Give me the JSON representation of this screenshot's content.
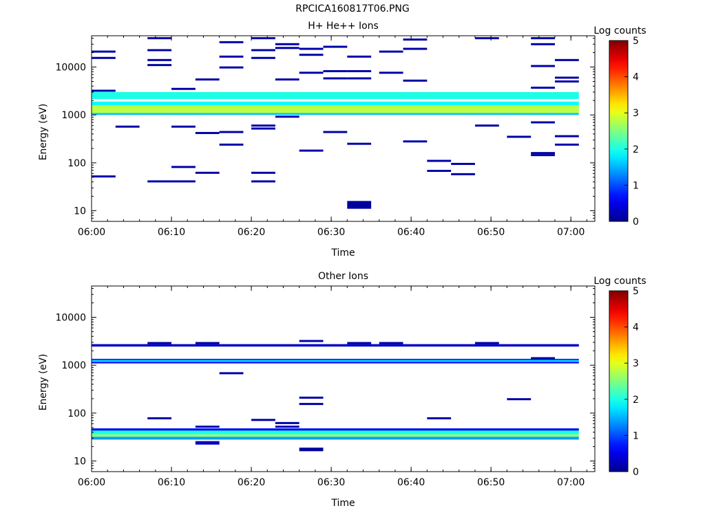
{
  "title": "RPCICA160817T06.PNG",
  "chart_data": [
    {
      "type": "heatmap",
      "title": "H+ He++ Ions",
      "xlabel": "Time",
      "ylabel": "Energy (eV)",
      "y_scale": "log",
      "xlim": [
        "06:00",
        "07:03"
      ],
      "ylim": [
        6,
        45000
      ],
      "x_ticks": [
        "06:00",
        "06:10",
        "06:20",
        "06:30",
        "06:40",
        "06:50",
        "07:00"
      ],
      "y_ticks": [
        "10",
        "100",
        "1000",
        "10000"
      ],
      "colorbar": {
        "label": "Log counts",
        "min": 0,
        "max": 5,
        "ticks": [
          "0",
          "1",
          "2",
          "3",
          "4",
          "5"
        ]
      },
      "bands": [
        {
          "t0": "06:00",
          "t1": "07:01",
          "e_lo": 2150,
          "e_hi": 3000,
          "v": 2.0
        },
        {
          "t0": "06:00",
          "t1": "07:01",
          "e_lo": 1600,
          "e_hi": 1900,
          "v": 1.9
        },
        {
          "t0": "06:00",
          "t1": "07:01",
          "e_lo": 1100,
          "e_hi": 1600,
          "v": 2.8
        },
        {
          "t0": "06:00",
          "t1": "07:01",
          "e_lo": 1000,
          "e_hi": 1100,
          "v": 1.6
        },
        {
          "t0": "06:32",
          "t1": "06:35",
          "e_lo": 11,
          "e_hi": 16,
          "v": 0.1
        }
      ],
      "points": [
        [
          "06:00",
          21000
        ],
        [
          "06:00",
          15500
        ],
        [
          "06:00",
          3200
        ],
        [
          "06:00",
          52
        ],
        [
          "06:03",
          570
        ],
        [
          "06:07",
          40000
        ],
        [
          "06:07",
          22500
        ],
        [
          "06:07",
          14000
        ],
        [
          "06:07",
          11000
        ],
        [
          "06:07",
          41
        ],
        [
          "06:10",
          3500
        ],
        [
          "06:10",
          570
        ],
        [
          "06:10",
          82
        ],
        [
          "06:10",
          41
        ],
        [
          "06:13",
          5500
        ],
        [
          "06:13",
          420
        ],
        [
          "06:13",
          62
        ],
        [
          "06:16",
          33000
        ],
        [
          "06:16",
          16500
        ],
        [
          "06:16",
          9800
        ],
        [
          "06:16",
          440
        ],
        [
          "06:16",
          240
        ],
        [
          "06:20",
          40000
        ],
        [
          "06:20",
          22500
        ],
        [
          "06:20",
          15500
        ],
        [
          "06:20",
          600
        ],
        [
          "06:20",
          520
        ],
        [
          "06:20",
          62
        ],
        [
          "06:20",
          41
        ],
        [
          "06:23",
          30000
        ],
        [
          "06:23",
          25000
        ],
        [
          "06:23",
          5500
        ],
        [
          "06:23",
          920
        ],
        [
          "06:26",
          24000
        ],
        [
          "06:26",
          18000
        ],
        [
          "06:26",
          7600
        ],
        [
          "06:26",
          180
        ],
        [
          "06:29",
          26500
        ],
        [
          "06:29",
          8200
        ],
        [
          "06:29",
          5800
        ],
        [
          "06:29",
          440
        ],
        [
          "06:32",
          16500
        ],
        [
          "06:32",
          8200
        ],
        [
          "06:32",
          5800
        ],
        [
          "06:32",
          250
        ],
        [
          "06:36",
          21000
        ],
        [
          "06:36",
          7600
        ],
        [
          "06:39",
          37500
        ],
        [
          "06:39",
          24000
        ],
        [
          "06:39",
          5200
        ],
        [
          "06:39",
          280
        ],
        [
          "06:42",
          110
        ],
        [
          "06:42",
          68
        ],
        [
          "06:45",
          95
        ],
        [
          "06:45",
          58
        ],
        [
          "06:48",
          40000
        ],
        [
          "06:48",
          600
        ],
        [
          "06:52",
          350
        ],
        [
          "06:55",
          40000
        ],
        [
          "06:55",
          30000
        ],
        [
          "06:55",
          10500
        ],
        [
          "06:55",
          3700
        ],
        [
          "06:55",
          700
        ],
        [
          "06:55",
          160
        ],
        [
          "06:55",
          145
        ],
        [
          "06:58",
          14000
        ],
        [
          "06:58",
          6000
        ],
        [
          "06:58",
          5000
        ],
        [
          "06:58",
          360
        ],
        [
          "06:58",
          240
        ]
      ]
    },
    {
      "type": "heatmap",
      "title": "Other Ions",
      "xlabel": "Time",
      "ylabel": "Energy (eV)",
      "y_scale": "log",
      "xlim": [
        "06:00",
        "07:03"
      ],
      "ylim": [
        6,
        45000
      ],
      "x_ticks": [
        "06:00",
        "06:10",
        "06:20",
        "06:30",
        "06:40",
        "06:50",
        "07:00"
      ],
      "y_ticks": [
        "10",
        "100",
        "1000",
        "10000"
      ],
      "colorbar": {
        "label": "Log counts",
        "min": 0,
        "max": 5,
        "ticks": [
          "0",
          "1",
          "2",
          "3",
          "4",
          "5"
        ]
      },
      "bands": [
        {
          "t0": "06:00",
          "t1": "07:01",
          "e_lo": 2450,
          "e_hi": 2750,
          "v": 0.3
        },
        {
          "t0": "06:00",
          "t1": "07:01",
          "e_lo": 1270,
          "e_hi": 1360,
          "v": 0.9
        },
        {
          "t0": "06:00",
          "t1": "07:01",
          "e_lo": 1170,
          "e_hi": 1270,
          "v": 1.7
        },
        {
          "t0": "06:00",
          "t1": "07:01",
          "e_lo": 1090,
          "e_hi": 1170,
          "v": 0.6
        },
        {
          "t0": "06:00",
          "t1": "07:01",
          "e_lo": 43,
          "e_hi": 48,
          "v": 0.7
        },
        {
          "t0": "06:00",
          "t1": "07:01",
          "e_lo": 36,
          "e_hi": 43,
          "v": 2.0
        },
        {
          "t0": "06:00",
          "t1": "07:01",
          "e_lo": 32,
          "e_hi": 36,
          "v": 2.6
        },
        {
          "t0": "06:00",
          "t1": "07:01",
          "e_lo": 28,
          "e_hi": 32,
          "v": 1.4
        },
        {
          "t0": "06:13",
          "t1": "06:16",
          "e_lo": 22,
          "e_hi": 26,
          "v": 0.3
        },
        {
          "t0": "06:26",
          "t1": "06:29",
          "e_lo": 16,
          "e_hi": 19,
          "v": 0.1
        }
      ],
      "points": [
        [
          "06:07",
          2900
        ],
        [
          "06:07",
          78
        ],
        [
          "06:13",
          2900
        ],
        [
          "06:13",
          52
        ],
        [
          "06:16",
          680
        ],
        [
          "06:20",
          72
        ],
        [
          "06:23",
          62
        ],
        [
          "06:23",
          52
        ],
        [
          "06:26",
          3200
        ],
        [
          "06:26",
          210
        ],
        [
          "06:26",
          155
        ],
        [
          "06:32",
          2900
        ],
        [
          "06:36",
          2900
        ],
        [
          "06:42",
          78
        ],
        [
          "06:48",
          2900
        ],
        [
          "06:52",
          195
        ],
        [
          "06:55",
          1400
        ]
      ]
    }
  ]
}
